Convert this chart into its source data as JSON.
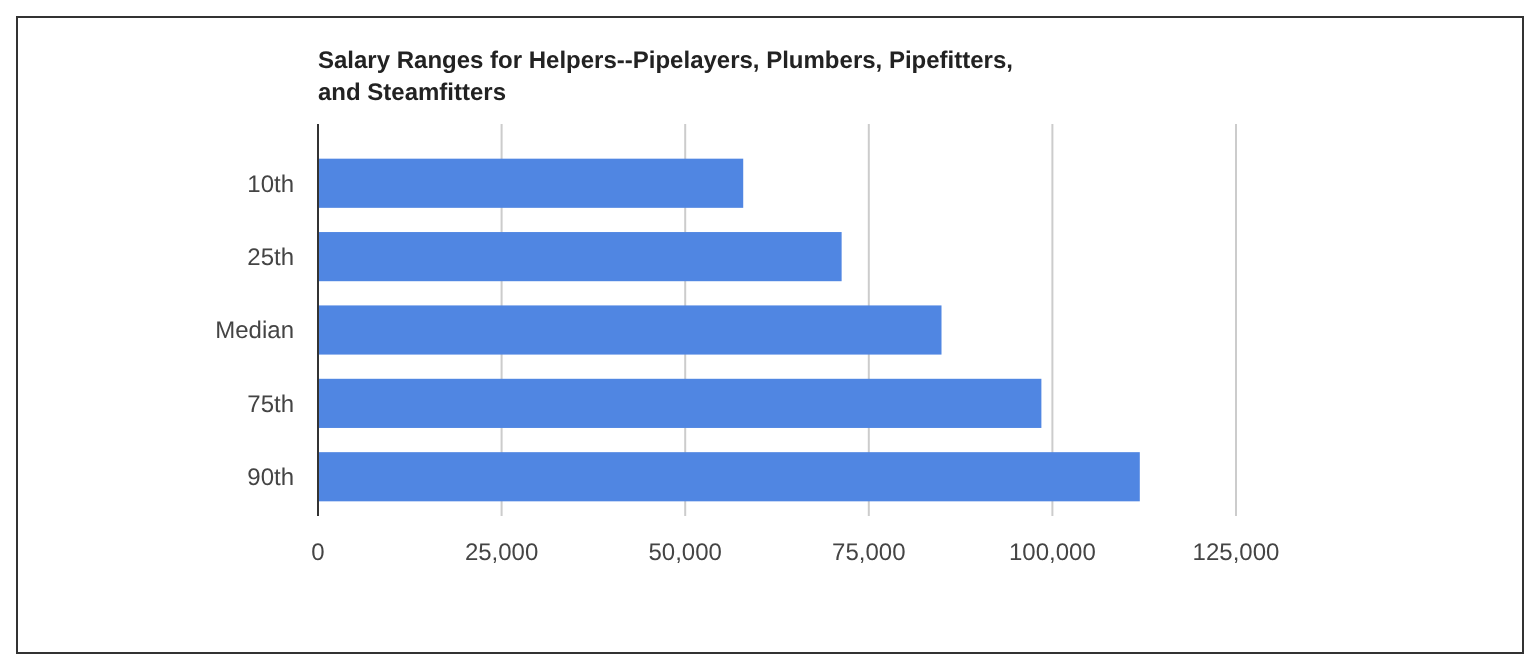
{
  "chart_data": {
    "type": "bar",
    "orientation": "horizontal",
    "title": "Salary Ranges for Helpers--Pipelayers, Plumbers, Pipefitters, and Steamfitters",
    "categories": [
      "10th",
      "25th",
      "Median",
      "75th",
      "90th"
    ],
    "values": [
      57900,
      71300,
      84900,
      98500,
      111900
    ],
    "color": "#5086e2",
    "xlim": [
      0,
      125000
    ],
    "xticks": [
      {
        "value": 0,
        "label": "0"
      },
      {
        "value": 25000,
        "label": "25,000"
      },
      {
        "value": 50000,
        "label": "50,000"
      },
      {
        "value": 75000,
        "label": "75,000"
      },
      {
        "value": 100000,
        "label": "100,000"
      },
      {
        "value": 125000,
        "label": "125,000"
      }
    ],
    "grid": "x"
  }
}
